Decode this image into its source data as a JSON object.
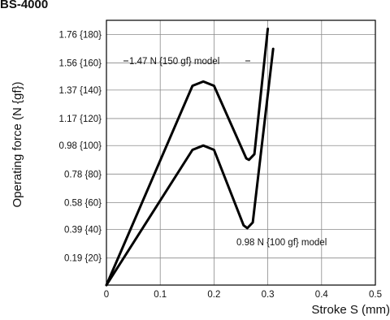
{
  "header_text": "BS-4000",
  "chart_data": {
    "type": "line",
    "title": "",
    "xlabel": "Stroke S (mm)",
    "ylabel": "Operating force (N {gf})",
    "xlim": [
      0,
      0.5
    ],
    "ylim": [
      0,
      1.86
    ],
    "grid": true,
    "x_ticks": [
      {
        "value": 0,
        "label": "0"
      },
      {
        "value": 0.1,
        "label": "0.1"
      },
      {
        "value": 0.2,
        "label": "0.2"
      },
      {
        "value": 0.3,
        "label": "0.3"
      },
      {
        "value": 0.4,
        "label": "0.4"
      },
      {
        "value": 0.5,
        "label": "0.5"
      }
    ],
    "y_ticks": [
      {
        "value": 0.19,
        "label": "0.19 {20}"
      },
      {
        "value": 0.39,
        "label": "0.39 {40}"
      },
      {
        "value": 0.58,
        "label": "0.58 {60}"
      },
      {
        "value": 0.78,
        "label": "0.78 {80}"
      },
      {
        "value": 0.98,
        "label": "0.98 {100}"
      },
      {
        "value": 1.17,
        "label": "1.17 {120}"
      },
      {
        "value": 1.37,
        "label": "1.37 {140}"
      },
      {
        "value": 1.56,
        "label": "1.56 {160}"
      },
      {
        "value": 1.76,
        "label": "1.76 {180}"
      }
    ],
    "series": [
      {
        "name": "1.47 N {150 gf} model",
        "points": [
          [
            0,
            0
          ],
          [
            0.16,
            1.4
          ],
          [
            0.18,
            1.43
          ],
          [
            0.2,
            1.4
          ],
          [
            0.26,
            0.89
          ],
          [
            0.265,
            0.88
          ],
          [
            0.275,
            0.92
          ],
          [
            0.3,
            1.8
          ]
        ]
      },
      {
        "name": "0.98 N {100 gf} model",
        "points": [
          [
            0,
            0
          ],
          [
            0.16,
            0.95
          ],
          [
            0.18,
            0.98
          ],
          [
            0.2,
            0.95
          ],
          [
            0.255,
            0.42
          ],
          [
            0.262,
            0.4
          ],
          [
            0.272,
            0.44
          ],
          [
            0.31,
            1.66
          ]
        ]
      }
    ]
  }
}
